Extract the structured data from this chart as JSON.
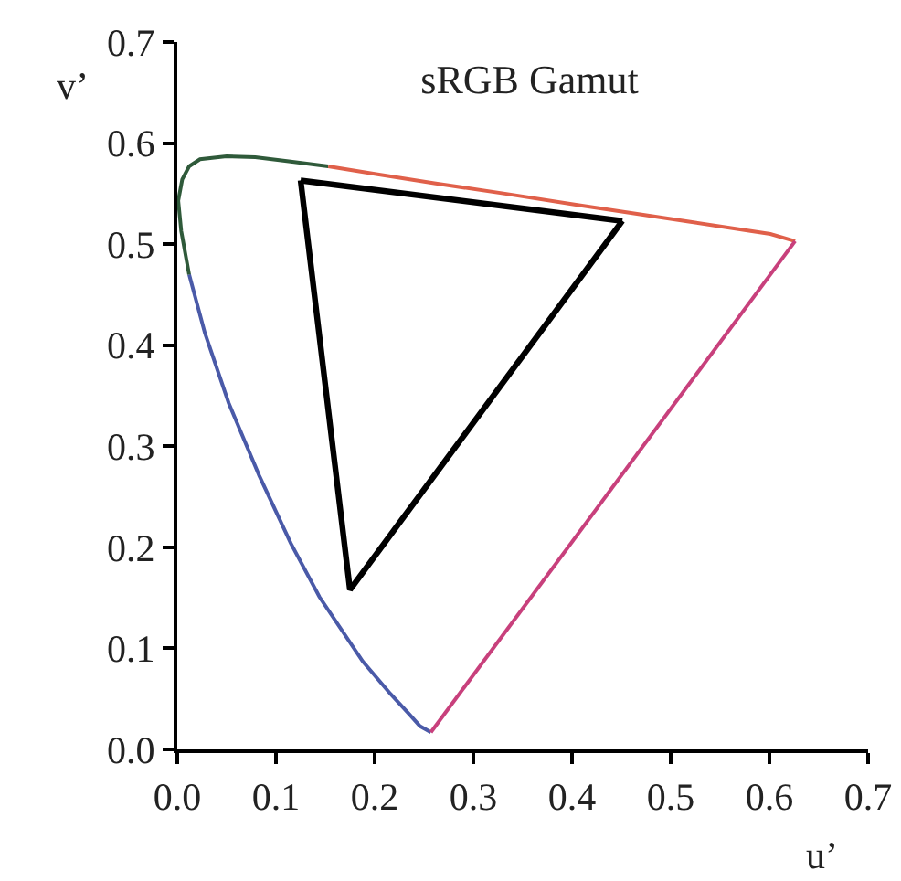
{
  "chart_data": {
    "type": "line",
    "title": "sRGB Gamut",
    "xlabel": "u’",
    "ylabel": "v’",
    "xlim": [
      0,
      0.7
    ],
    "ylim": [
      0,
      0.7
    ],
    "xticks": [
      {
        "value": 0,
        "label": "0.0"
      },
      0.1,
      0.2,
      0.3,
      0.4,
      0.5,
      0.6,
      0.7
    ],
    "yticks": [
      {
        "value": 0,
        "label": "0.0"
      },
      0.1,
      0.2,
      0.3,
      0.4,
      0.5,
      0.6,
      0.7
    ],
    "grid": false,
    "marker": "none",
    "line_style": "solid",
    "series": [
      {
        "color": "#4a5aa8",
        "x": [
          0.257,
          0.246,
          0.235,
          0.216,
          0.188,
          0.144,
          0.115,
          0.083,
          0.052,
          0.028,
          0.012
        ],
        "values": [
          0.017,
          0.023,
          0.035,
          0.055,
          0.087,
          0.151,
          0.204,
          0.271,
          0.343,
          0.412,
          0.47
        ]
      },
      {
        "color": "#2f5a3a",
        "x": [
          0.012,
          0.004,
          0.001,
          0.005,
          0.012,
          0.023,
          0.05,
          0.079,
          0.113,
          0.153
        ],
        "values": [
          0.47,
          0.513,
          0.543,
          0.564,
          0.577,
          0.584,
          0.587,
          0.586,
          0.582,
          0.577
        ]
      },
      {
        "color": "#e0604a",
        "x": [
          0.153,
          0.203,
          0.262,
          0.332,
          0.404,
          0.52,
          0.601,
          0.626
        ],
        "values": [
          0.577,
          0.569,
          0.56,
          0.55,
          0.539,
          0.522,
          0.51,
          0.503
        ]
      },
      {
        "color": "#c8407c",
        "x": [
          0.626,
          0.257
        ],
        "values": [
          0.503,
          0.017
        ]
      },
      {
        "color": "#000000",
        "x": [
          0.125,
          0.451
        ],
        "values": [
          0.563,
          0.523
        ]
      },
      {
        "color": "#000000",
        "x": [
          0.125,
          0.175,
          0.451
        ],
        "values": [
          0.563,
          0.158,
          0.523
        ]
      }
    ]
  }
}
